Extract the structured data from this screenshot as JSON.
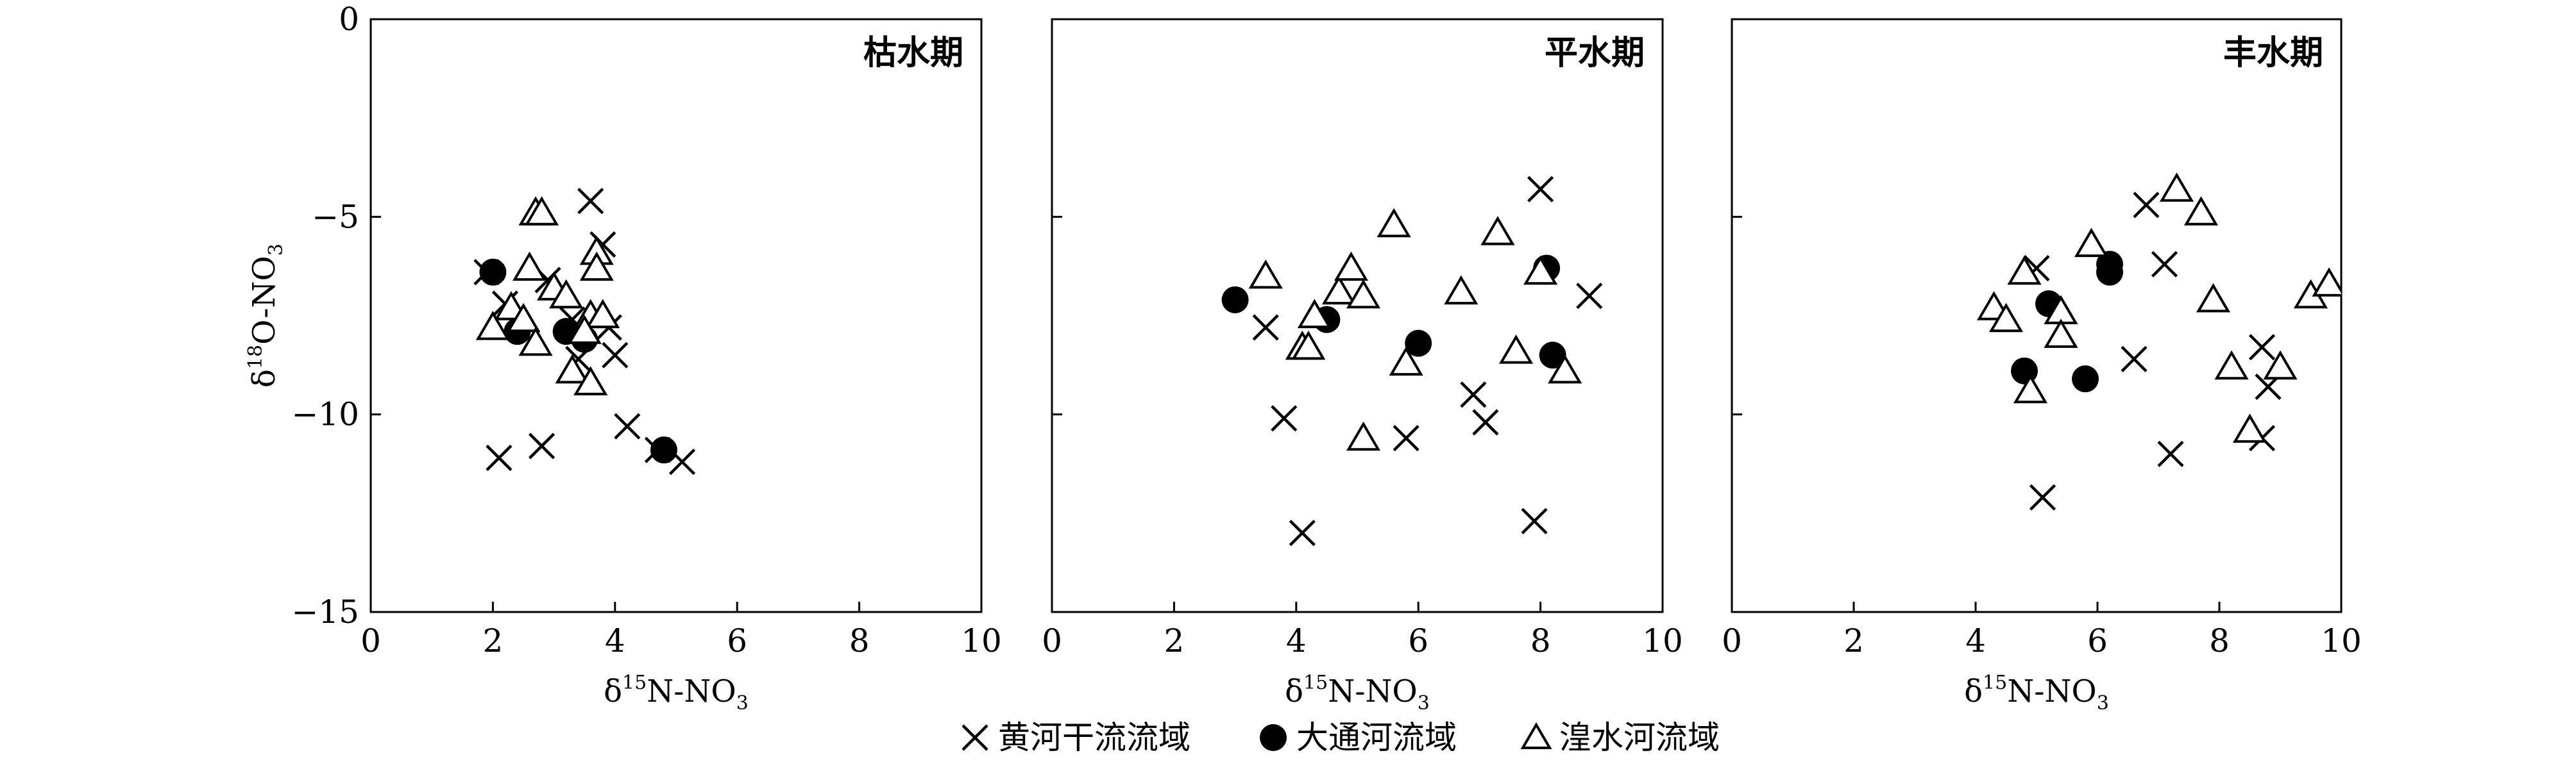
{
  "chart_data": [
    {
      "type": "scatter",
      "title": "枯水期",
      "xlabel": "δ15N-NO3",
      "ylabel": "δ18O-NO3",
      "xlim": [
        0,
        10
      ],
      "ylim": [
        -15,
        0
      ],
      "xticks": [
        "0",
        "2",
        "4",
        "6",
        "8",
        "10"
      ],
      "yticks": [
        "0",
        "−5",
        "−10",
        "−15"
      ],
      "series": [
        {
          "name": "黄河干流流域",
          "marker": "cross",
          "points": [
            [
              3.6,
              -4.6
            ],
            [
              3.8,
              -5.7
            ],
            [
              2.2,
              -7.2
            ],
            [
              3.3,
              -7.6
            ],
            [
              3.9,
              -7.8
            ],
            [
              4.0,
              -8.5
            ],
            [
              2.8,
              -10.8
            ],
            [
              2.1,
              -11.1
            ],
            [
              4.2,
              -10.3
            ],
            [
              4.7,
              -10.9
            ],
            [
              5.1,
              -11.2
            ],
            [
              1.9,
              -6.4
            ],
            [
              2.9,
              -6.6
            ],
            [
              3.4,
              -8.6
            ]
          ]
        },
        {
          "name": "大通河流域",
          "marker": "dot",
          "points": [
            [
              2.0,
              -6.4
            ],
            [
              2.4,
              -7.9
            ],
            [
              3.2,
              -7.9
            ],
            [
              3.5,
              -8.1
            ],
            [
              4.8,
              -10.9
            ]
          ]
        },
        {
          "name": "湟水河流域",
          "marker": "triangle",
          "points": [
            [
              2.7,
              -4.9
            ],
            [
              2.8,
              -4.9
            ],
            [
              3.7,
              -5.9
            ],
            [
              3.7,
              -6.3
            ],
            [
              2.6,
              -6.3
            ],
            [
              3.0,
              -6.8
            ],
            [
              3.2,
              -7.0
            ],
            [
              2.3,
              -7.3
            ],
            [
              2.5,
              -7.6
            ],
            [
              3.6,
              -7.5
            ],
            [
              3.8,
              -7.5
            ],
            [
              2.0,
              -7.8
            ],
            [
              2.7,
              -8.2
            ],
            [
              3.3,
              -8.9
            ],
            [
              3.6,
              -9.2
            ],
            [
              3.5,
              -7.9
            ]
          ]
        }
      ]
    },
    {
      "type": "scatter",
      "title": "平水期",
      "xlabel": "δ15N-NO3",
      "ylabel": "",
      "xlim": [
        0,
        10
      ],
      "ylim": [
        -15,
        0
      ],
      "xticks": [
        "0",
        "2",
        "4",
        "6",
        "8",
        "10"
      ],
      "series": [
        {
          "name": "黄河干流流域",
          "marker": "cross",
          "points": [
            [
              8.0,
              -4.3
            ],
            [
              8.8,
              -7.0
            ],
            [
              3.5,
              -7.8
            ],
            [
              3.8,
              -10.1
            ],
            [
              4.1,
              -13.0
            ],
            [
              5.8,
              -10.6
            ],
            [
              6.9,
              -9.5
            ],
            [
              7.1,
              -10.2
            ],
            [
              7.9,
              -12.7
            ]
          ]
        },
        {
          "name": "大通河流域",
          "marker": "dot",
          "points": [
            [
              3.0,
              -7.1
            ],
            [
              4.5,
              -7.6
            ],
            [
              6.0,
              -8.2
            ],
            [
              8.1,
              -6.3
            ],
            [
              8.2,
              -8.5
            ]
          ]
        },
        {
          "name": "湟水河流域",
          "marker": "triangle",
          "points": [
            [
              3.5,
              -6.5
            ],
            [
              4.3,
              -7.5
            ],
            [
              4.7,
              -6.9
            ],
            [
              4.9,
              -6.3
            ],
            [
              5.1,
              -7.0
            ],
            [
              4.1,
              -8.3
            ],
            [
              4.2,
              -8.3
            ],
            [
              5.6,
              -5.2
            ],
            [
              5.8,
              -8.7
            ],
            [
              5.1,
              -10.6
            ],
            [
              6.7,
              -6.9
            ],
            [
              7.3,
              -5.4
            ],
            [
              7.6,
              -8.4
            ],
            [
              8.0,
              -6.4
            ],
            [
              8.4,
              -8.9
            ]
          ]
        }
      ]
    },
    {
      "type": "scatter",
      "title": "丰水期",
      "xlabel": "δ15N-NO3",
      "ylabel": "",
      "xlim": [
        0,
        10
      ],
      "ylim": [
        -15,
        0
      ],
      "xticks": [
        "0",
        "2",
        "4",
        "6",
        "8",
        "10"
      ],
      "series": [
        {
          "name": "黄河干流流域",
          "marker": "cross",
          "points": [
            [
              5.0,
              -6.3
            ],
            [
              6.8,
              -4.7
            ],
            [
              7.1,
              -6.2
            ],
            [
              6.6,
              -8.6
            ],
            [
              8.7,
              -8.3
            ],
            [
              8.8,
              -9.3
            ],
            [
              7.2,
              -11.0
            ],
            [
              8.7,
              -10.6
            ],
            [
              5.1,
              -12.1
            ]
          ]
        },
        {
          "name": "大通河流域",
          "marker": "dot",
          "points": [
            [
              4.8,
              -8.9
            ],
            [
              5.2,
              -7.2
            ],
            [
              5.8,
              -9.1
            ],
            [
              6.2,
              -6.2
            ],
            [
              6.2,
              -6.4
            ]
          ]
        },
        {
          "name": "湟水河流域",
          "marker": "triangle",
          "points": [
            [
              4.3,
              -7.3
            ],
            [
              4.5,
              -7.6
            ],
            [
              4.8,
              -6.4
            ],
            [
              4.9,
              -9.4
            ],
            [
              5.4,
              -7.4
            ],
            [
              5.4,
              -8.0
            ],
            [
              5.9,
              -5.7
            ],
            [
              7.3,
              -4.3
            ],
            [
              7.7,
              -4.9
            ],
            [
              7.9,
              -7.1
            ],
            [
              8.2,
              -8.8
            ],
            [
              8.5,
              -10.4
            ],
            [
              9.0,
              -8.8
            ],
            [
              9.5,
              -7.0
            ],
            [
              9.8,
              -6.7
            ]
          ]
        }
      ]
    }
  ],
  "legend": {
    "items": [
      {
        "label": "黄河干流流域",
        "marker": "cross"
      },
      {
        "label": "大通河流域",
        "marker": "dot"
      },
      {
        "label": "湟水河流域",
        "marker": "triangle"
      }
    ]
  }
}
